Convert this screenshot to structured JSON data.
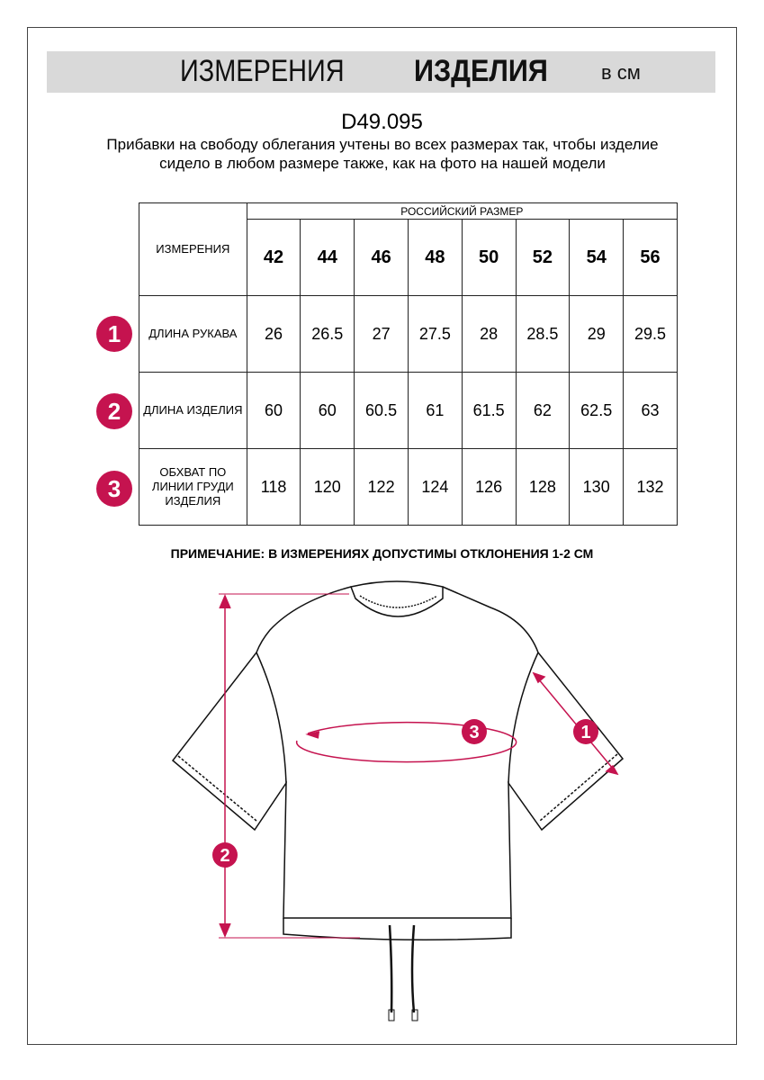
{
  "header": {
    "title_regular": "ИЗМЕРЕНИЯ",
    "title_bold": "ИЗДЕЛИЯ",
    "unit": "в см"
  },
  "product_code": "D49.095",
  "description": "Прибавки на свободу облегания учтены во всех размерах так, чтобы изделие сидело в любом размере также, как на фото на нашей модели",
  "table": {
    "measure_header": "ИЗМЕРЕНИЯ",
    "size_group": "РОССИЙСКИЙ РАЗМЕР",
    "sizes": [
      "42",
      "44",
      "46",
      "48",
      "50",
      "52",
      "54",
      "56"
    ],
    "rows": [
      {
        "badge": "1",
        "label": "ДЛИНА РУКАВА",
        "values": [
          "26",
          "26.5",
          "27",
          "27.5",
          "28",
          "28.5",
          "29",
          "29.5"
        ]
      },
      {
        "badge": "2",
        "label": "ДЛИНА ИЗДЕЛИЯ",
        "values": [
          "60",
          "60",
          "60.5",
          "61",
          "61.5",
          "62",
          "62.5",
          "63"
        ]
      },
      {
        "badge": "3",
        "label": "ОБХВАТ ПО ЛИНИИ ГРУДИ ИЗДЕЛИЯ",
        "values": [
          "118",
          "120",
          "122",
          "124",
          "126",
          "128",
          "130",
          "132"
        ]
      }
    ]
  },
  "note": "ПРИМЕЧАНИЕ: В ИЗМЕРЕНИЯХ ДОПУСТИМЫ ОТКЛОНЕНИЯ 1-2 СМ",
  "colors": {
    "accent": "#c5134f",
    "banner": "#d9d9d9"
  }
}
